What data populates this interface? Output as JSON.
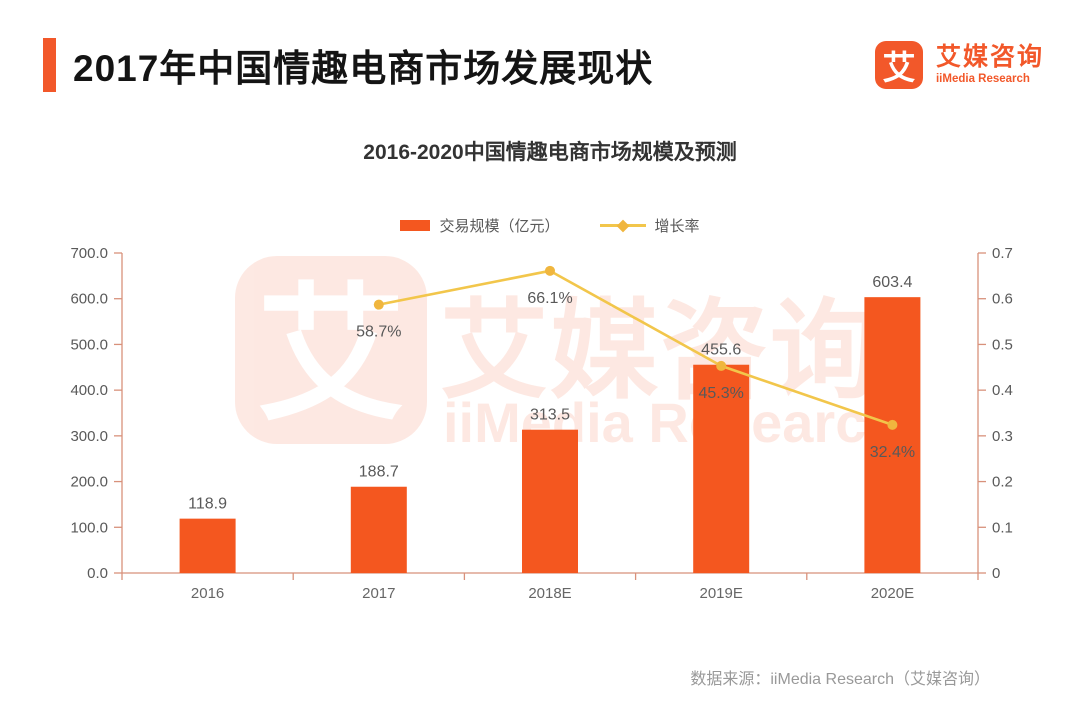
{
  "page": {
    "background": "#FFFFFF"
  },
  "header": {
    "title": "2017年中国情趣电商市场发展现状",
    "accent_color": "#F2582A",
    "logo": {
      "glyph": "艾",
      "name_cn": "艾媒咨询",
      "name_en": "iiMedia Research",
      "color": "#F2582A"
    }
  },
  "chart": {
    "title": "2016-2020中国情趣电商市场规模及预测",
    "watermark": {
      "glyph": "艾",
      "name_cn": "艾媒咨询",
      "name_en": "iiMedia Research"
    }
  },
  "chart_data": {
    "type": "bar",
    "title": "2016-2020中国情趣电商市场规模及预测",
    "categories": [
      "2016",
      "2017",
      "2018E",
      "2019E",
      "2020E"
    ],
    "series": [
      {
        "name": "交易规模（亿元）",
        "type": "bar",
        "axis": "left",
        "color": "#F4571F",
        "values": [
          118.9,
          188.7,
          313.5,
          455.6,
          603.4
        ],
        "labels": [
          "118.9",
          "188.7",
          "313.5",
          "455.6",
          "603.4"
        ]
      },
      {
        "name": "增长率",
        "type": "line",
        "axis": "right",
        "color": "#F2C64B",
        "marker_color": "#F0B63E",
        "values": [
          null,
          0.587,
          0.661,
          0.453,
          0.324
        ],
        "labels": [
          "",
          "58.7%",
          "66.1%",
          "45.3%",
          "32.4%"
        ]
      }
    ],
    "left_axis": {
      "min": 0,
      "max": 700,
      "step": 100,
      "tick_labels": [
        "0.0",
        "100.0",
        "200.0",
        "300.0",
        "400.0",
        "500.0",
        "600.0",
        "700.0"
      ]
    },
    "right_axis": {
      "min": 0,
      "max": 0.7,
      "step": 0.1,
      "tick_labels": [
        "0",
        "0.1",
        "0.2",
        "0.3",
        "0.4",
        "0.5",
        "0.6",
        "0.7"
      ]
    },
    "axis_color": "#D8917B",
    "label_color": "#595959",
    "category_label_color": "#666666",
    "grid": false,
    "legend_position": "top"
  },
  "footer": {
    "source": "数据来源：iiMedia Research（艾媒咨询）"
  }
}
